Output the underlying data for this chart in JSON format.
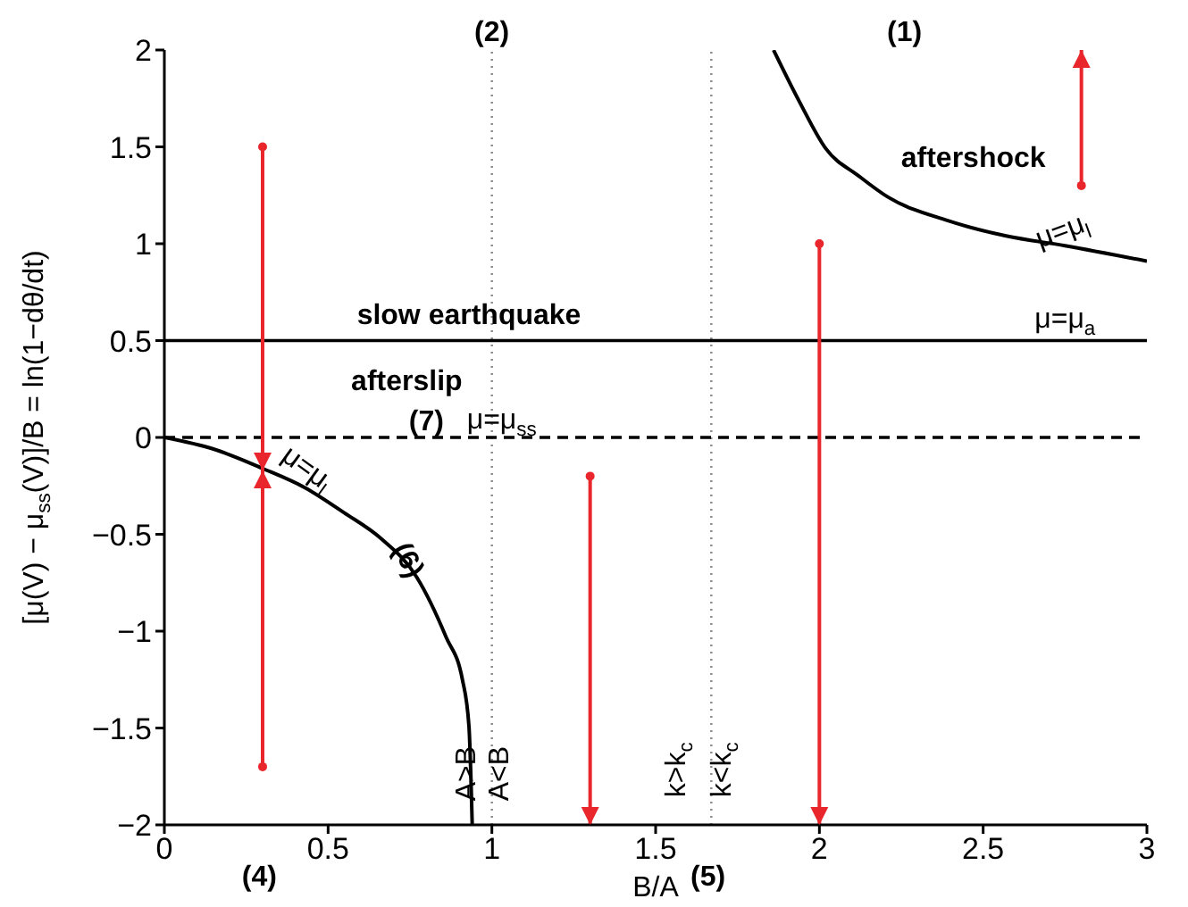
{
  "chart_data": {
    "type": "line",
    "xlabel": "B/A",
    "ylabel": "[μ(V) − μ$_{ss}$(V)]/B = ln(1−dθ/dt)",
    "xlim": [
      0,
      3
    ],
    "xticks": [
      0,
      0.5,
      1,
      1.5,
      2,
      2.5,
      3
    ],
    "ylim": [
      -2,
      2
    ],
    "yticks": [
      {
        "value": -2,
        "label": "−2"
      },
      {
        "value": -1.5,
        "label": "−1.5"
      },
      {
        "value": -1,
        "label": "−1"
      },
      {
        "value": -0.5,
        "label": "−0.5"
      },
      0,
      0.5,
      1,
      1.5,
      2
    ],
    "series": [
      {
        "color": "#000000",
        "x": [
          1.86,
          1.94,
          2.02,
          2.12,
          2.21,
          2.39,
          2.57,
          2.75,
          3
        ],
        "values": [
          2,
          1.73,
          1.49,
          1.35,
          1.24,
          1.12,
          1.04,
          0.99,
          0.91
        ]
      },
      {
        "color": "#000000",
        "x": [
          0,
          0.15,
          0.3,
          0.43,
          0.55,
          0.66,
          0.77,
          0.86,
          0.91,
          0.93,
          0.94
        ],
        "values": [
          0,
          -0.06,
          -0.16,
          -0.26,
          -0.39,
          -0.52,
          -0.72,
          -1.03,
          -1.25,
          -1.49,
          -2
        ]
      },
      {
        "color": "#e8262b",
        "marker": "circle",
        "x": [
          0.3,
          0.3
        ],
        "values": [
          1.5,
          -0.17
        ]
      },
      {
        "color": "#e8262b",
        "marker": "circle",
        "x": [
          0.3,
          0.3
        ],
        "values": [
          -1.7,
          -0.17
        ]
      },
      {
        "color": "#e8262b",
        "marker": "circle",
        "x": [
          1.3,
          1.3
        ],
        "values": [
          -0.2,
          -2
        ]
      },
      {
        "color": "#e8262b",
        "marker": "circle",
        "x": [
          2,
          2
        ],
        "values": [
          1,
          -2
        ]
      },
      {
        "color": "#e8262b",
        "marker": "circle",
        "x": [
          2.8,
          2.8
        ],
        "values": [
          1.3,
          2
        ]
      }
    ],
    "ref_lines": [
      {
        "axis": "x",
        "value": 1,
        "line_style": "dotted",
        "color": "#888888"
      },
      {
        "axis": "x",
        "value": 1.67,
        "line_style": "dotted",
        "color": "#888888"
      },
      {
        "axis": "y",
        "value": 0,
        "line_style": "dashed",
        "color": "#000000"
      },
      {
        "axis": "y",
        "value": 0.5,
        "line_style": "solid",
        "color": "#000000"
      }
    ],
    "annotations": [
      "(1)",
      "(2)",
      "aftershock",
      "μ=μ$_{l}$",
      "μ=μ$_{a}$",
      "slow earthquake",
      "afterslip",
      "(7)",
      "μ=μ$_{ss}$",
      "μ=μ$_{l}$",
      "(6)",
      "A>B",
      "A<B",
      "k>k$_{c}$",
      "k<k$_{c}$",
      "(4)",
      "(5)"
    ]
  }
}
